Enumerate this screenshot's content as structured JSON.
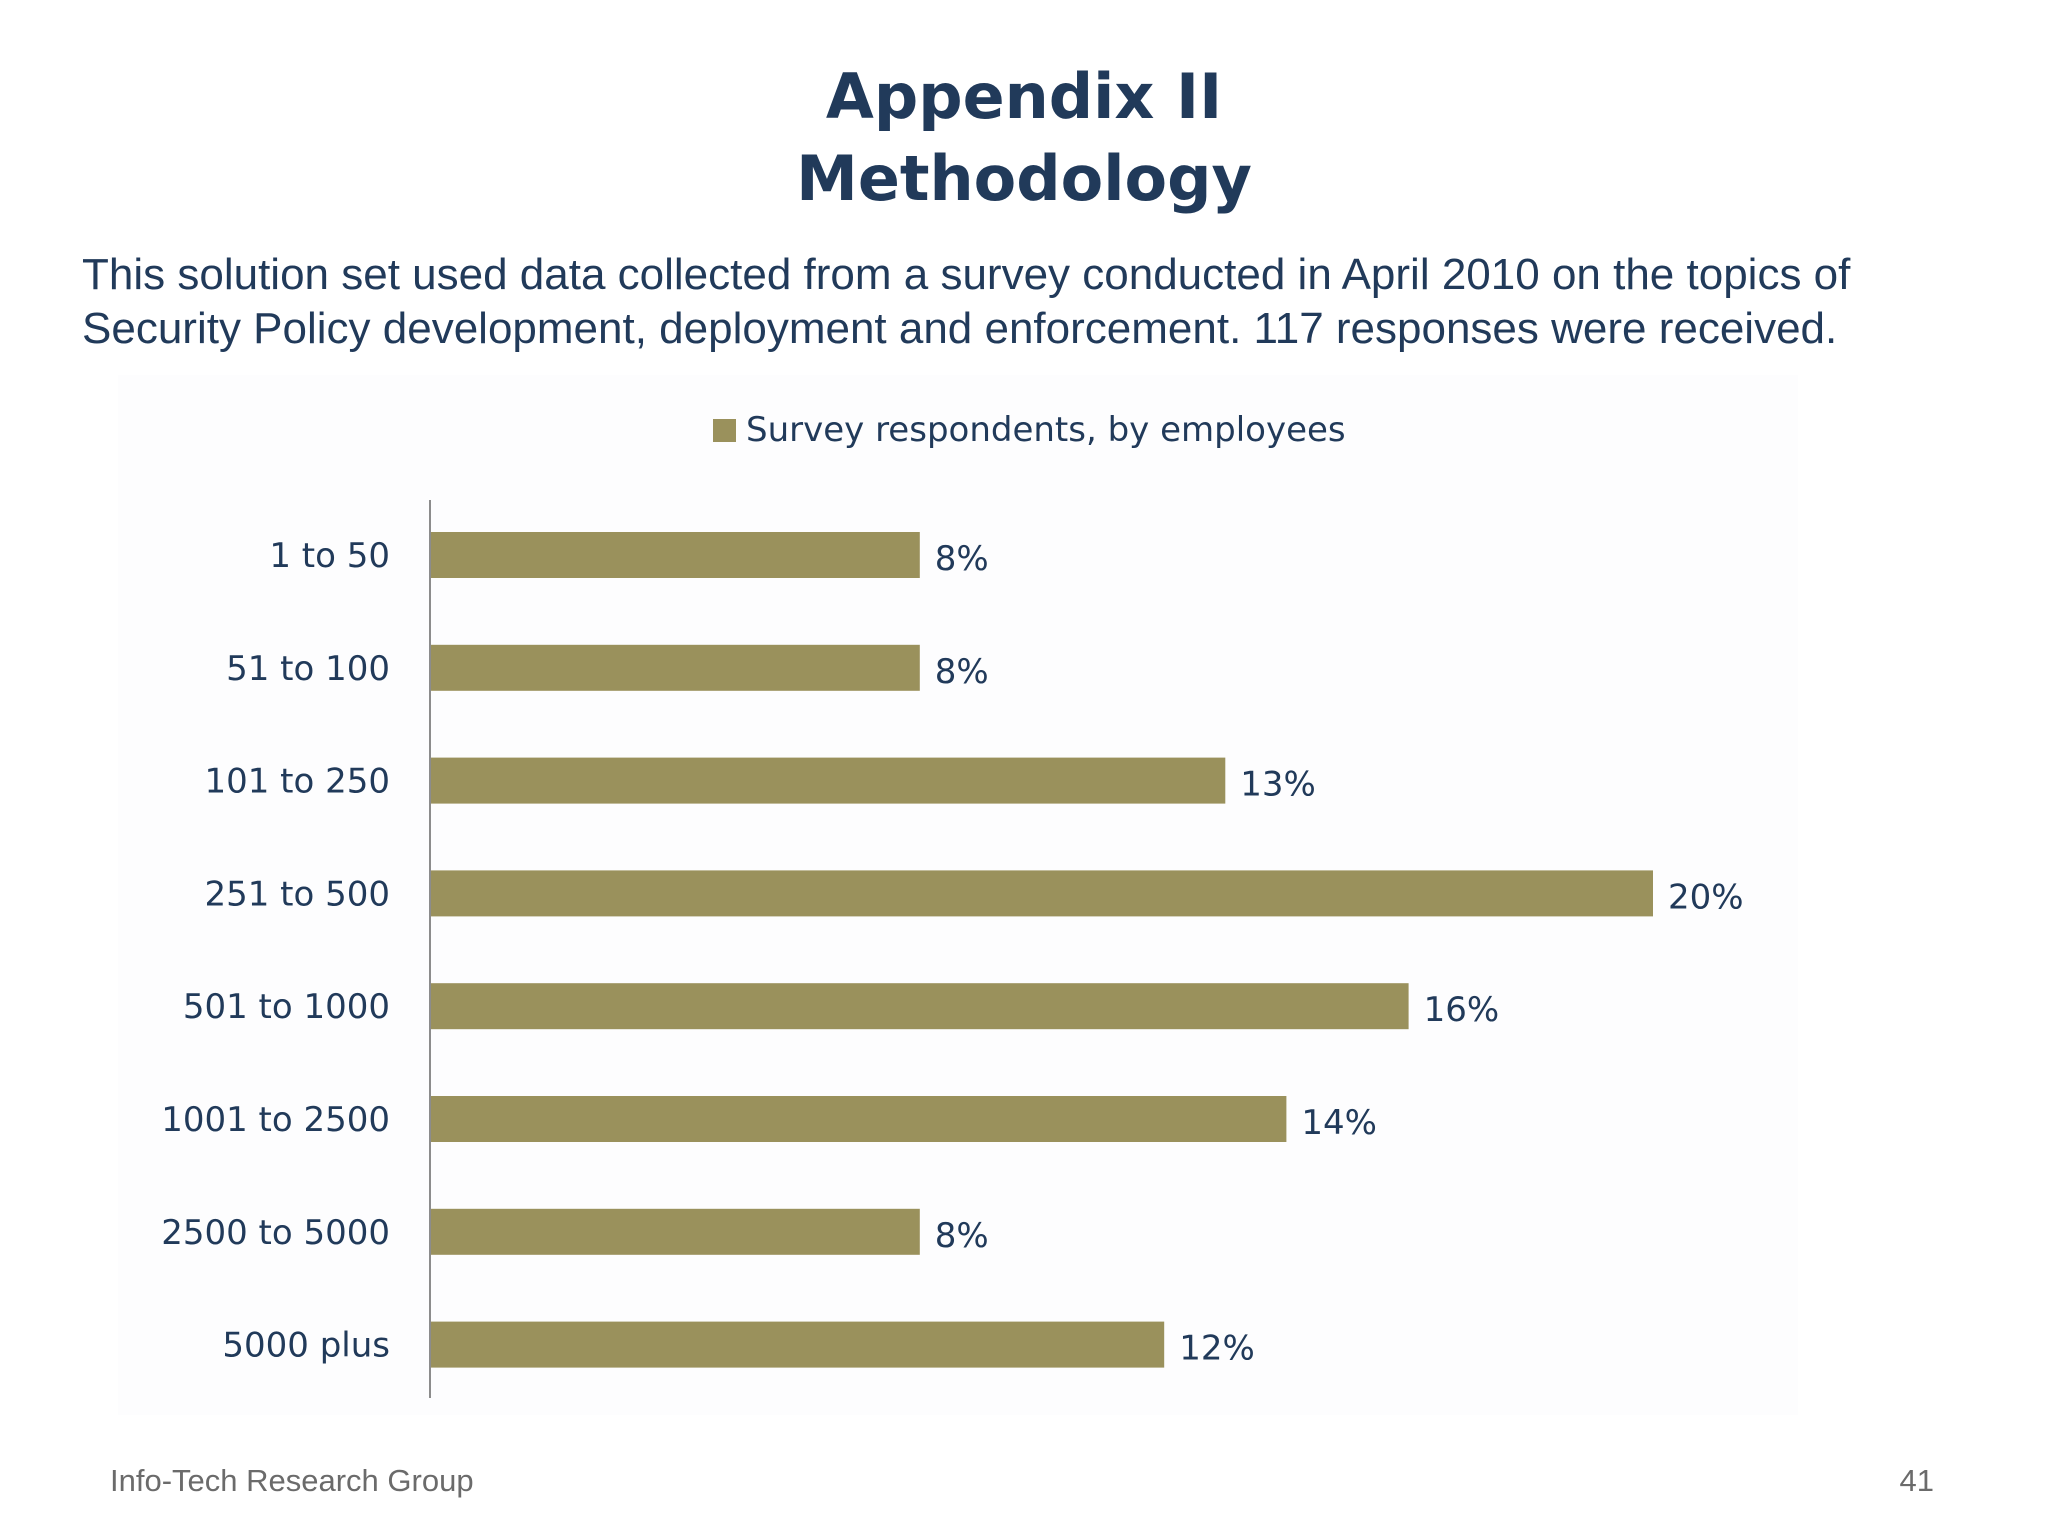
{
  "slide": {
    "title_line1": "Appendix II",
    "title_line2": "Methodology",
    "intro_line1": "This solution set used data collected from a survey conducted in April 2010 on the topics of",
    "intro_line2": "Security Policy development, deployment and enforcement. 117 responses were received."
  },
  "footer": {
    "organization": "Info-Tech Research Group",
    "page_number": "41"
  },
  "colors": {
    "title_text": "#213a5a",
    "bar_fill": "#9a915c",
    "axis_line": "#8c8c8c",
    "footer_text": "#6b6b6b"
  },
  "chart_data": {
    "type": "bar",
    "orientation": "horizontal",
    "legend_position": "top",
    "grid": false,
    "categories": [
      "1 to 50",
      "51 to 100",
      "101 to 250",
      "251 to 500",
      "501 to 1000",
      "1001 to 2500",
      "2500 to 5000",
      "5000 plus"
    ],
    "series": [
      {
        "name": "Survey respondents, by employees",
        "values": [
          8,
          8,
          13,
          20,
          16,
          14,
          8,
          12
        ],
        "labels": [
          "8%",
          "8%",
          "13%",
          "20%",
          "16%",
          "14%",
          "8%",
          "12%"
        ]
      }
    ],
    "xlim": [
      0,
      20
    ],
    "value_unit": "%"
  }
}
